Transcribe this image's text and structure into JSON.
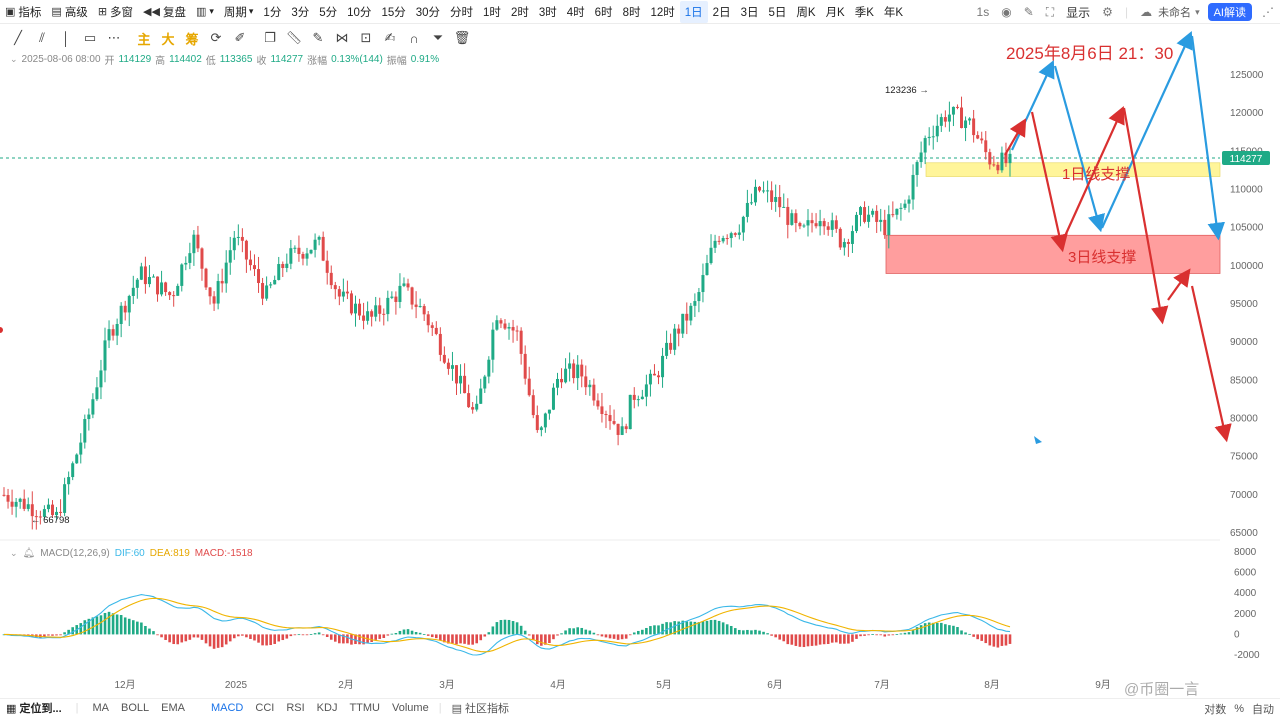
{
  "toolbar": {
    "indicators": "指标",
    "advanced": "高级",
    "multi_window": "多窗",
    "replay": "复盘",
    "period_label": "周期",
    "periods": [
      "1分",
      "3分",
      "5分",
      "10分",
      "15分",
      "30分",
      "分时",
      "1时",
      "2时",
      "3时",
      "4时",
      "6时",
      "8时",
      "12时",
      "1日",
      "2日",
      "3日",
      "5日",
      "周K",
      "月K",
      "季K",
      "年K"
    ],
    "active_period": "1日",
    "right": {
      "interval": "1s",
      "display": "显示",
      "unnamed": "未命名",
      "ai": "AI解读"
    }
  },
  "drawing": {
    "text_main": "主",
    "text_big": "大",
    "text_chip": "筹"
  },
  "info": {
    "date": "2025-08-06 08:00",
    "open_label": "开",
    "open": "114129",
    "high_label": "高",
    "high": "114402",
    "low_label": "低",
    "low": "113365",
    "close_label": "收",
    "close": "114277",
    "change_label": "涨幅",
    "change": "0.13%(144)",
    "amp_label": "振幅",
    "amp": "0.91%"
  },
  "macd_info": {
    "label": "MACD(12,26,9)",
    "dif_label": "DIF:",
    "dif": "60",
    "dea_label": "DEA:",
    "dea": "819",
    "macd_label": "MACD:",
    "macd": "-1518"
  },
  "annotations": {
    "date_text": "2025年8月6日 21：30",
    "support_1d": "1日线支撑",
    "support_3d": "3日线支撑",
    "high_mark": "123236",
    "low_mark": "66798",
    "last_price": "114277"
  },
  "colors": {
    "up": "#1faa86",
    "down": "#e04a4a",
    "blue_arrow": "#2a9be0",
    "red_arrow": "#d93030",
    "yellow_zone": "#fff59a",
    "red_zone": "#ff9e9e",
    "dif": "#3bb8e8",
    "dea": "#f0b400"
  },
  "bottom": {
    "locate": "定位到...",
    "indicators": [
      "MA",
      "BOLL",
      "EMA",
      "MACD",
      "CCI",
      "RSI",
      "KDJ",
      "TTMU",
      "Volume"
    ],
    "active_indicator": "MACD",
    "community": "社区指标",
    "log": "对数",
    "percent": "%",
    "auto": "自动"
  },
  "watermark": "@币圈一言",
  "chart_data": {
    "type": "candlestick",
    "price_axis": {
      "min": 65000,
      "max": 125000,
      "ticks": [
        125000,
        120000,
        115000,
        110000,
        105000,
        100000,
        95000,
        90000,
        85000,
        80000,
        75000,
        70000,
        65000
      ],
      "tick_labels": [
        "125000",
        "120000",
        "115000",
        "110000",
        "105000",
        "100000",
        "95000",
        "90000",
        "85000",
        "80000",
        "75000",
        "70000",
        "65000"
      ]
    },
    "macd_axis": {
      "min": -2000,
      "max": 8000,
      "ticks": [
        8000,
        6000,
        4000,
        2000,
        0,
        -2000
      ],
      "tick_labels": [
        "8000",
        "6000",
        "4000",
        "2000",
        "0",
        "-2000"
      ]
    },
    "x_labels": [
      "12月",
      "2025",
      "2月",
      "3月",
      "4月",
      "5月",
      "6月",
      "7月",
      "8月",
      "9月"
    ],
    "price_path": [
      [
        0,
        70000
      ],
      [
        5,
        67000
      ],
      [
        8,
        80000
      ],
      [
        10,
        91000
      ],
      [
        13,
        99000
      ],
      [
        16,
        96000
      ],
      [
        18,
        104000
      ],
      [
        20,
        95000
      ],
      [
        22,
        104000
      ],
      [
        25,
        96000
      ],
      [
        27,
        101000
      ],
      [
        30,
        103000
      ],
      [
        32,
        96000
      ],
      [
        35,
        93000
      ],
      [
        38,
        97000
      ],
      [
        40,
        94000
      ],
      [
        43,
        86000
      ],
      [
        45,
        80000
      ],
      [
        47,
        94000
      ],
      [
        49,
        91000
      ],
      [
        51,
        77000
      ],
      [
        53,
        86000
      ],
      [
        55,
        86000
      ],
      [
        57,
        82000
      ],
      [
        59,
        78000
      ],
      [
        60,
        83000
      ],
      [
        62,
        85000
      ],
      [
        64,
        91000
      ],
      [
        66,
        95000
      ],
      [
        68,
        104000
      ],
      [
        70,
        105000
      ],
      [
        72,
        110000
      ],
      [
        74,
        108000
      ],
      [
        76,
        104000
      ],
      [
        78,
        107000
      ],
      [
        80,
        103000
      ],
      [
        82,
        107000
      ],
      [
        84,
        105000
      ],
      [
        86,
        108000
      ],
      [
        88,
        117000
      ],
      [
        90,
        120000
      ],
      [
        92,
        119000
      ],
      [
        94,
        114000
      ],
      [
        96,
        113400
      ]
    ],
    "ohlc_last": {
      "open": 114129,
      "high": 114402,
      "low": 113365,
      "close": 114277
    },
    "macd": {
      "dif": 60,
      "dea": 819,
      "hist": -1518
    },
    "zones": [
      {
        "name": "1日线支撑",
        "from": 111700,
        "to": 113500
      },
      {
        "name": "3日线支撑",
        "from": 99000,
        "to": 104000
      }
    ]
  }
}
